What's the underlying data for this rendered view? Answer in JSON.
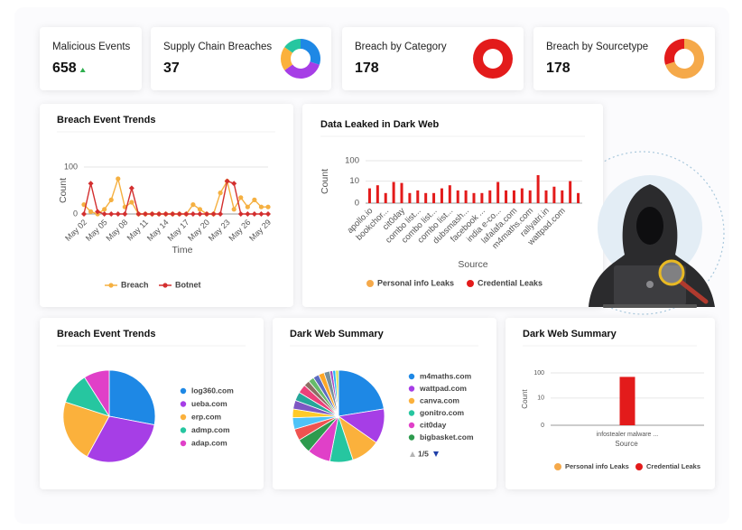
{
  "kpis": [
    {
      "title": "Malicious Events",
      "value": 658,
      "trend": "up"
    },
    {
      "title": "Supply Chain Breaches",
      "value": 37,
      "values": [
        30,
        35,
        20,
        15
      ],
      "colors": [
        "#1e88e5",
        "#a63ee6",
        "#fbb13c",
        "#26c6a0"
      ]
    },
    {
      "title": "Breach by Category",
      "value": 178,
      "values": [
        100
      ],
      "colors": [
        "#e31b1b"
      ]
    },
    {
      "title": "Breach by Sourcetype",
      "value": 178,
      "values": [
        70,
        30
      ],
      "colors": [
        "#f5a94a",
        "#e31b1b"
      ]
    }
  ],
  "chart_data": [
    {
      "type": "line",
      "title": "Breach Event Trends",
      "x_label": "Time",
      "y_label": "Count",
      "categories": [
        "May 02",
        null,
        null,
        "May 05",
        null,
        null,
        "May 08",
        null,
        null,
        "May 11",
        null,
        null,
        "May 14",
        null,
        null,
        "May 17",
        null,
        null,
        "May 20",
        null,
        null,
        "May 23",
        null,
        null,
        "May 26",
        null,
        null,
        "May 29"
      ],
      "series": [
        {
          "name": "Breach",
          "color": "#f5b041",
          "marker": "circle",
          "values": [
            20,
            5,
            0,
            10,
            30,
            75,
            15,
            25,
            0,
            0,
            0,
            0,
            0,
            0,
            0,
            0,
            20,
            10,
            0,
            0,
            45,
            70,
            10,
            35,
            15,
            30,
            15,
            15
          ]
        },
        {
          "name": "Botnet",
          "color": "#d32f2f",
          "marker": "diamond",
          "values": [
            0,
            65,
            5,
            0,
            0,
            0,
            0,
            55,
            0,
            0,
            0,
            0,
            0,
            0,
            0,
            0,
            0,
            0,
            0,
            0,
            0,
            70,
            65,
            0,
            0,
            0,
            0,
            0
          ]
        }
      ],
      "ylim": [
        0,
        100
      ],
      "yticks": [
        0,
        100
      ],
      "grid": true,
      "legend": "bottom"
    },
    {
      "type": "bar",
      "title": "Data Leaked in Dark Web",
      "x_label": "Source",
      "y_label": "Count",
      "yscale": "symlog",
      "categories": [
        "apollo.io",
        null,
        "bookchor...",
        null,
        "cit0day",
        null,
        "combo list...",
        null,
        "combo list...",
        null,
        "combo list...",
        null,
        "dubsmash...",
        null,
        "facebook ...",
        null,
        "india e-co...",
        null,
        "lafalafa.com",
        null,
        "m4maths.com",
        null,
        "rallyatri.in",
        null,
        "wattpad.com",
        null,
        null
      ],
      "series": [
        {
          "name": "Personal info Leaks",
          "color": "#f5a94a",
          "values": [
            0,
            0,
            0,
            0,
            0,
            0,
            0,
            0,
            0,
            0,
            0,
            0,
            0,
            0,
            0,
            0,
            0,
            0,
            0,
            0,
            0,
            0,
            0,
            0,
            0,
            0,
            0
          ]
        },
        {
          "name": "Credential Leaks",
          "color": "#e31b1b",
          "values": [
            4,
            6,
            2,
            9,
            8,
            2,
            3,
            2,
            2,
            4,
            6,
            3,
            3,
            2,
            2,
            3,
            9,
            3,
            3,
            4,
            3,
            20,
            3,
            5,
            3,
            10,
            2
          ]
        }
      ],
      "ylim": [
        0,
        100
      ],
      "yticks": [
        0,
        10,
        100
      ],
      "grid": true,
      "legend": "bottom"
    },
    {
      "type": "pie",
      "title": "Breach Event Trends",
      "categories": [
        "log360.com",
        "ueba.com",
        "erp.com",
        "admp.com",
        "adap.com"
      ],
      "values": [
        28,
        30,
        22,
        11,
        9
      ],
      "colors": [
        "#1e88e5",
        "#a63ee6",
        "#fbb13c",
        "#26c6a0",
        "#e040c8"
      ],
      "legend": "right"
    },
    {
      "type": "pie",
      "title": "Dark Web Summary",
      "categories": [
        "m4maths.com",
        "wattpad.com",
        "canva.com",
        "gonitro.com",
        "cit0day",
        "bigbasket.com",
        null,
        null,
        null,
        null,
        null,
        null,
        null,
        null,
        null,
        null,
        null,
        null,
        null,
        null
      ],
      "values": [
        22,
        12,
        10,
        8,
        8,
        5,
        4,
        4,
        3,
        3,
        3,
        3,
        2,
        2,
        2,
        2,
        2,
        1,
        1,
        1
      ],
      "colors": [
        "#1e88e5",
        "#a63ee6",
        "#fbb13c",
        "#26c6a0",
        "#e040c8",
        "#2e9b4e",
        "#ef5350",
        "#4fc3f7",
        "#ffca28",
        "#7e57c2",
        "#26a69a",
        "#ec407a",
        "#8d6e63",
        "#66bb6a",
        "#5c6bc0",
        "#ffa726",
        "#78909c",
        "#ab47bc",
        "#29b6f6",
        "#d4e157"
      ],
      "legend": "right",
      "pager": "1/5"
    },
    {
      "type": "bar",
      "title": "Dark Web Summary",
      "x_label": "Source",
      "y_label": "Count",
      "yscale": "symlog",
      "categories": [
        "infostealer malware ..."
      ],
      "series": [
        {
          "name": "Personal info Leaks",
          "color": "#f5a94a",
          "values": [
            0
          ]
        },
        {
          "name": "Credential Leaks",
          "color": "#e31b1b",
          "values": [
            70
          ]
        }
      ],
      "ylim": [
        0,
        100
      ],
      "yticks": [
        0,
        10,
        100
      ],
      "grid": true,
      "legend": "bottom"
    }
  ]
}
